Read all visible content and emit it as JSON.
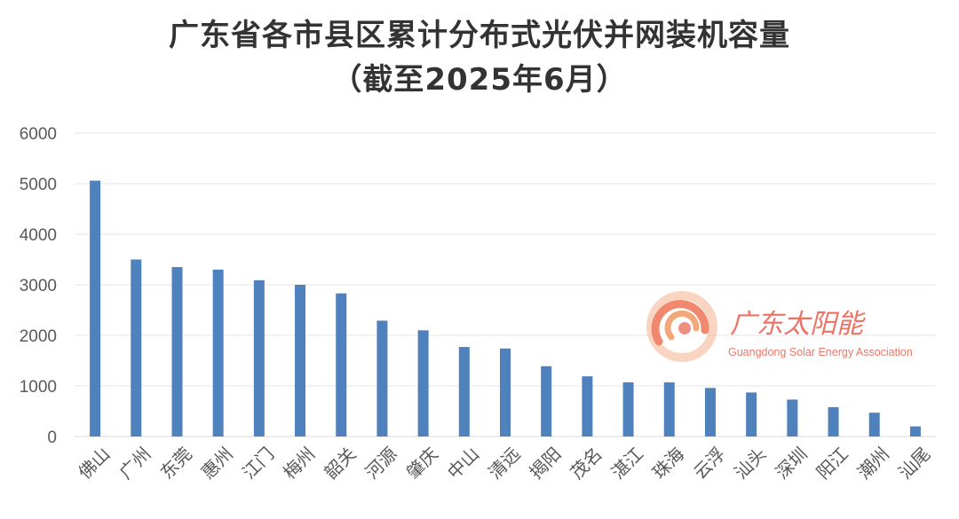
{
  "chart_data": {
    "type": "bar",
    "title": "广东省各市县区累计分布式光伏并网装机容量",
    "subtitle": "（截至2025年6月）",
    "xlabel": "",
    "ylabel": "",
    "ylim": [
      0,
      6000
    ],
    "yticks": [
      0,
      1000,
      2000,
      3000,
      4000,
      5000,
      6000
    ],
    "grid": true,
    "categories": [
      "佛山",
      "广州",
      "东莞",
      "惠州",
      "江门",
      "梅州",
      "韶关",
      "河源",
      "肇庆",
      "中山",
      "清远",
      "揭阳",
      "茂名",
      "湛江",
      "珠海",
      "云浮",
      "汕头",
      "深圳",
      "阳江",
      "潮州",
      "汕尾"
    ],
    "values": [
      5060,
      3500,
      3350,
      3300,
      3090,
      3000,
      2830,
      2290,
      2100,
      1770,
      1740,
      1390,
      1190,
      1070,
      1070,
      960,
      870,
      730,
      580,
      470,
      200
    ],
    "bar_color": "#4f81bd"
  },
  "watermark": {
    "name": "广东太阳能",
    "subtitle": "Guangdong Solar Energy Association",
    "color": "#e85a4a"
  }
}
